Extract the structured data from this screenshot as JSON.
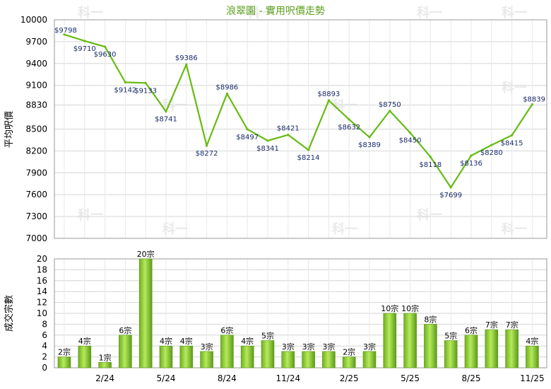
{
  "chart_data": [
    {
      "type": "line",
      "title": "浪翠園 - 實用呎價走勢",
      "ylabel": "平均呎價",
      "ylim": [
        7000,
        10000
      ],
      "yticks": [
        7000,
        7300,
        7600,
        7900,
        8200,
        8500,
        8830,
        9100,
        9400,
        9700,
        10000
      ],
      "ytick_labels": [
        "7000",
        "7300",
        "7600",
        "7900",
        "8200",
        "8500",
        "8830",
        "9100",
        "9400",
        "9700",
        "10000"
      ],
      "line_color": "#66bb11",
      "grid": true,
      "series": [
        {
          "values": [
            9798,
            9710,
            9630,
            9142,
            9133,
            8741,
            9386,
            8272,
            8986,
            8497,
            8341,
            8421,
            8214,
            8893,
            8632,
            8389,
            8750,
            8450,
            8118,
            7699,
            8136,
            8280,
            8415,
            8839
          ],
          "labels": [
            "$9798",
            "$9710",
            "$9630",
            "$9142",
            "$9133",
            "$8741",
            "$9386",
            "$8272",
            "$8986",
            "$8497",
            "$8341",
            "$8421",
            "$8214",
            "$8893",
            "$8632",
            "$8389",
            "$8750",
            "$8450",
            "$8118",
            "$7699",
            "$8136",
            "$8280",
            "$8415",
            "$8839"
          ]
        }
      ]
    },
    {
      "type": "bar",
      "ylabel": "成交宗數",
      "ylim": [
        0,
        20
      ],
      "yticks": [
        0,
        2,
        4,
        6,
        8,
        10,
        12,
        14,
        16,
        18,
        20
      ],
      "xtick_labels": [
        "2/24",
        "5/24",
        "8/24",
        "11/24",
        "2/25",
        "5/25",
        "8/25",
        "11/25"
      ],
      "bar_color": "#66bb11",
      "grid": true,
      "series": [
        {
          "values": [
            2,
            4,
            1,
            6,
            20,
            4,
            4,
            3,
            6,
            4,
            5,
            3,
            3,
            3,
            2,
            3,
            10,
            10,
            8,
            5,
            6,
            7,
            7,
            4
          ],
          "labels": [
            "2宗",
            "4宗",
            "1宗",
            "6宗",
            "20宗",
            "4宗",
            "4宗",
            "3宗",
            "6宗",
            "4宗",
            "5宗",
            "3宗",
            "3宗",
            "3宗",
            "2宗",
            "3宗",
            "10宗",
            "10宗",
            "8宗",
            "5宗",
            "6宗",
            "7宗",
            "7宗",
            "4宗"
          ]
        }
      ]
    }
  ],
  "watermark_text": "科一"
}
